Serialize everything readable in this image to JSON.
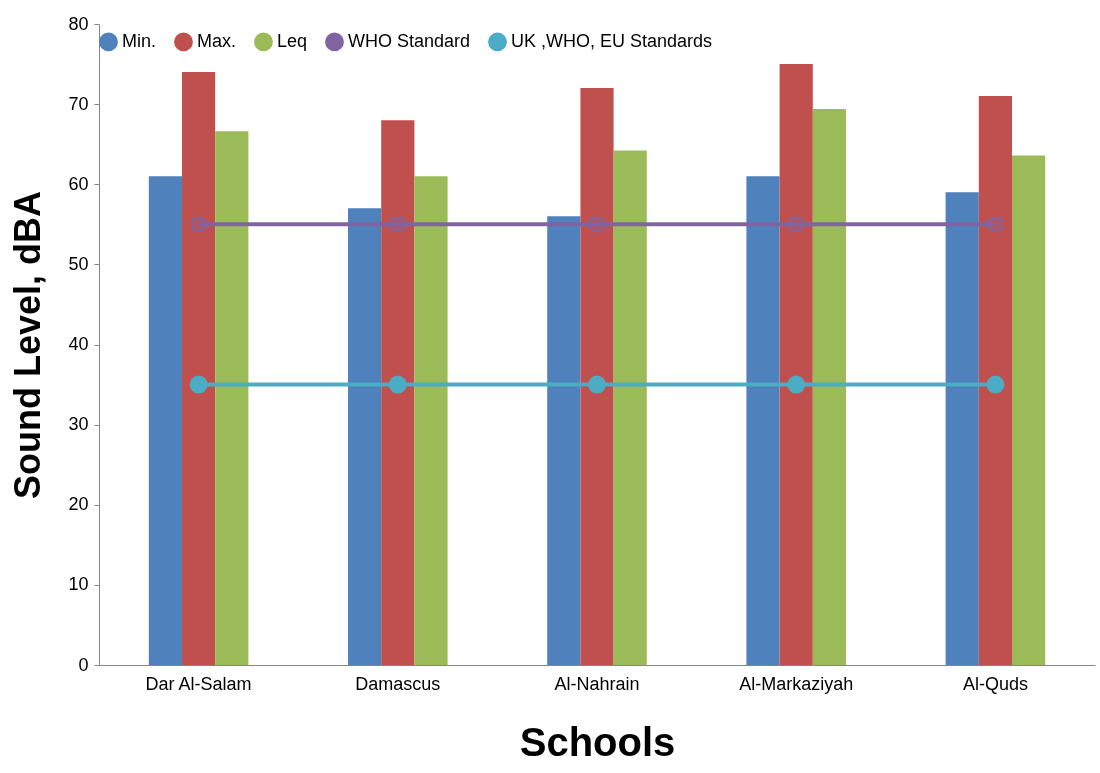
{
  "chart_data": {
    "type": "bar",
    "xlabel": "Schools",
    "ylabel": "Sound Level, dBA",
    "categories": [
      "Dar Al-Salam",
      "Damascus",
      "Al-Nahrain",
      "Al-Markaziyah",
      "Al-Quds"
    ],
    "series": [
      {
        "name": "Min.",
        "color": "#4f81bd",
        "values": [
          61,
          57,
          56,
          61,
          59
        ]
      },
      {
        "name": "Max.",
        "color": "#c0504d",
        "values": [
          74,
          68,
          72,
          75,
          71
        ]
      },
      {
        "name": "Leq",
        "color": "#9bbb59",
        "values": [
          66.6,
          61,
          64.2,
          69.4,
          63.6
        ]
      },
      {
        "name": "WHO Standard",
        "type": "line",
        "marker": "cross",
        "color": "#8064a2",
        "values": [
          55,
          55,
          55,
          55,
          55
        ]
      },
      {
        "name": "UK ,WHO, EU Standards",
        "type": "line",
        "marker": "circle",
        "color": "#4bacc6",
        "values": [
          35,
          35,
          35,
          35,
          35
        ]
      }
    ],
    "ylim": [
      0,
      80
    ],
    "yticks": [
      0,
      10,
      20,
      30,
      40,
      50,
      60,
      70,
      80
    ],
    "grid": false,
    "legend": "top"
  }
}
